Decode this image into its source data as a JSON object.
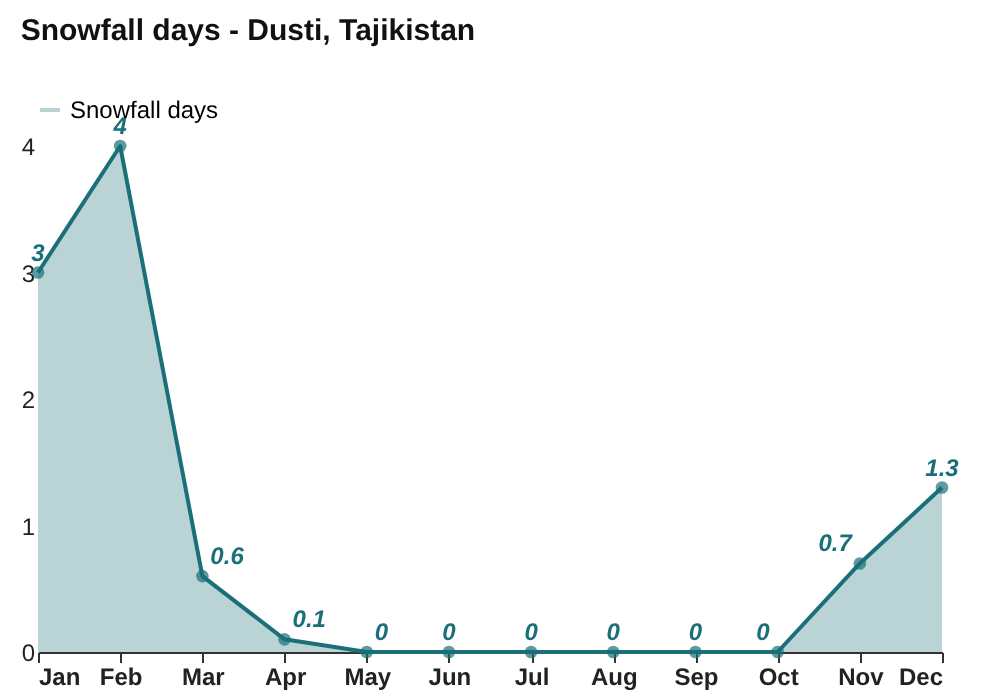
{
  "chart_data": {
    "type": "area",
    "title": "Snowfall days - Dusti, Tajikistan",
    "categories": [
      "Jan",
      "Feb",
      "Mar",
      "Apr",
      "May",
      "Jun",
      "Jul",
      "Aug",
      "Sep",
      "Oct",
      "Nov",
      "Dec"
    ],
    "series": [
      {
        "name": "Snowfall days",
        "color": "#1a6f78",
        "values": [
          3,
          4,
          0.6,
          0.1,
          0,
          0,
          0,
          0,
          0,
          0,
          0.7,
          1.3
        ]
      }
    ],
    "value_labels": [
      "3",
      "4",
      "0.6",
      "0.1",
      "0",
      "0",
      "0",
      "0",
      "0",
      "0",
      "0.7",
      "1.3"
    ],
    "ylim": [
      0,
      4
    ],
    "yticks": [
      0,
      1,
      2,
      3,
      4
    ],
    "grid": false,
    "legend": "top left",
    "marker": "circle"
  }
}
